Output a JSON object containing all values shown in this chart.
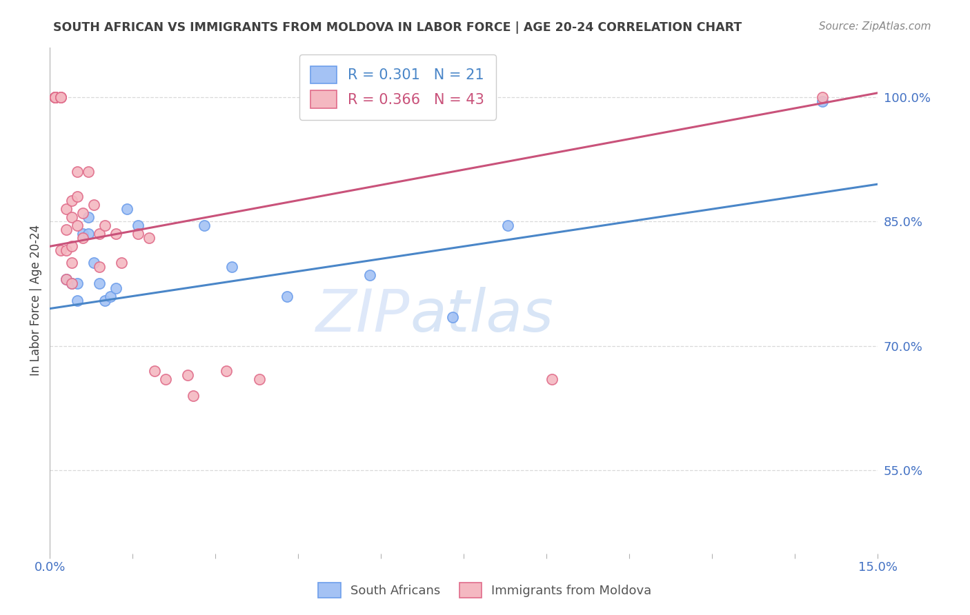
{
  "title": "SOUTH AFRICAN VS IMMIGRANTS FROM MOLDOVA IN LABOR FORCE | AGE 20-24 CORRELATION CHART",
  "source": "Source: ZipAtlas.com",
  "ylabel": "In Labor Force | Age 20-24",
  "xlim": [
    0.0,
    0.15
  ],
  "ylim": [
    0.45,
    1.06
  ],
  "yticks": [
    0.55,
    0.7,
    0.85,
    1.0
  ],
  "ytick_labels": [
    "55.0%",
    "70.0%",
    "85.0%",
    "100.0%"
  ],
  "xticks": [
    0.0,
    0.015,
    0.03,
    0.045,
    0.06,
    0.075,
    0.09,
    0.105,
    0.12,
    0.135,
    0.15
  ],
  "xtick_labels": [
    "0.0%",
    "",
    "",
    "",
    "",
    "",
    "",
    "",
    "",
    "",
    "15.0%"
  ],
  "blue_R": 0.301,
  "blue_N": 21,
  "pink_R": 0.366,
  "pink_N": 43,
  "blue_color": "#a4c2f4",
  "pink_color": "#f4b8c1",
  "blue_edge_color": "#6d9eeb",
  "pink_edge_color": "#e06c8a",
  "blue_line_color": "#4a86c8",
  "pink_line_color": "#c9527a",
  "legend_label_blue": "South Africans",
  "legend_label_pink": "Immigrants from Moldova",
  "blue_scatter_x": [
    0.003,
    0.004,
    0.005,
    0.005,
    0.006,
    0.007,
    0.007,
    0.008,
    0.009,
    0.01,
    0.011,
    0.012,
    0.014,
    0.016,
    0.028,
    0.033,
    0.043,
    0.058,
    0.073,
    0.083,
    0.14
  ],
  "blue_scatter_y": [
    0.78,
    0.775,
    0.755,
    0.775,
    0.835,
    0.835,
    0.855,
    0.8,
    0.775,
    0.755,
    0.76,
    0.77,
    0.865,
    0.845,
    0.845,
    0.795,
    0.76,
    0.785,
    0.735,
    0.845,
    0.995
  ],
  "pink_scatter_x": [
    0.001,
    0.001,
    0.001,
    0.001,
    0.001,
    0.001,
    0.001,
    0.001,
    0.002,
    0.002,
    0.002,
    0.002,
    0.003,
    0.003,
    0.003,
    0.003,
    0.004,
    0.004,
    0.004,
    0.004,
    0.004,
    0.005,
    0.005,
    0.005,
    0.006,
    0.006,
    0.007,
    0.008,
    0.009,
    0.009,
    0.01,
    0.012,
    0.013,
    0.016,
    0.018,
    0.019,
    0.021,
    0.025,
    0.026,
    0.032,
    0.038,
    0.091,
    0.14
  ],
  "pink_scatter_y": [
    1.0,
    1.0,
    1.0,
    1.0,
    1.0,
    1.0,
    1.0,
    1.0,
    1.0,
    1.0,
    1.0,
    0.815,
    0.865,
    0.84,
    0.815,
    0.78,
    0.875,
    0.855,
    0.82,
    0.8,
    0.775,
    0.91,
    0.88,
    0.845,
    0.86,
    0.83,
    0.91,
    0.87,
    0.835,
    0.795,
    0.845,
    0.835,
    0.8,
    0.835,
    0.83,
    0.67,
    0.66,
    0.665,
    0.64,
    0.67,
    0.66,
    0.66,
    1.0
  ],
  "blue_line_x": [
    0.0,
    0.15
  ],
  "blue_line_y": [
    0.745,
    0.895
  ],
  "pink_line_x": [
    0.0,
    0.15
  ],
  "pink_line_y": [
    0.82,
    1.005
  ],
  "watermark_zip": "ZIP",
  "watermark_atlas": "atlas",
  "bg_color": "#ffffff",
  "grid_color": "#d9d9d9",
  "title_color": "#404040",
  "axis_tick_color": "#4472c4",
  "ylabel_color": "#404040",
  "marker_size": 120,
  "title_fontsize": 12.5,
  "source_fontsize": 11
}
